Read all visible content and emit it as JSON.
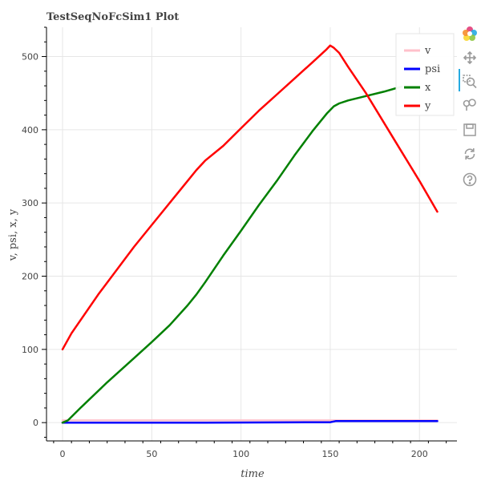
{
  "chart_data": {
    "type": "line",
    "title": "TestSeqNoFcSim1 Plot",
    "xlabel": "time",
    "ylabel": "v, psi, x, y",
    "xlim": [
      -9,
      221
    ],
    "ylim": [
      -25,
      540
    ],
    "x_ticks": [
      0,
      50,
      100,
      150,
      200
    ],
    "y_ticks": [
      0,
      100,
      200,
      300,
      400,
      500
    ],
    "grid": true,
    "legend_position": "top-right",
    "series": [
      {
        "name": "v",
        "color": "#ffc0cb",
        "points": [
          [
            0,
            3
          ],
          [
            210,
            3
          ]
        ]
      },
      {
        "name": "psi",
        "color": "#0000ff",
        "points": [
          [
            0,
            0
          ],
          [
            80,
            0
          ],
          [
            150,
            0.5
          ],
          [
            153,
            2
          ],
          [
            210,
            2
          ]
        ]
      },
      {
        "name": "x",
        "color": "#008000",
        "points": [
          [
            0,
            0
          ],
          [
            3,
            3
          ],
          [
            10,
            20
          ],
          [
            25,
            55
          ],
          [
            40,
            88
          ],
          [
            50,
            110
          ],
          [
            60,
            133
          ],
          [
            70,
            160
          ],
          [
            75,
            175
          ],
          [
            80,
            192
          ],
          [
            90,
            228
          ],
          [
            100,
            262
          ],
          [
            110,
            297
          ],
          [
            120,
            330
          ],
          [
            130,
            365
          ],
          [
            140,
            398
          ],
          [
            148,
            422
          ],
          [
            152,
            432
          ],
          [
            155,
            436
          ],
          [
            160,
            440
          ],
          [
            170,
            446
          ],
          [
            180,
            452
          ],
          [
            190,
            459
          ]
        ]
      },
      {
        "name": "y",
        "color": "#ff0000",
        "points": [
          [
            0,
            100
          ],
          [
            5,
            122
          ],
          [
            20,
            175
          ],
          [
            40,
            240
          ],
          [
            50,
            270
          ],
          [
            60,
            300
          ],
          [
            70,
            330
          ],
          [
            75,
            345
          ],
          [
            80,
            358
          ],
          [
            90,
            378
          ],
          [
            100,
            402
          ],
          [
            110,
            426
          ],
          [
            120,
            448
          ],
          [
            130,
            470
          ],
          [
            140,
            492
          ],
          [
            148,
            510
          ],
          [
            150,
            515
          ],
          [
            152,
            512
          ],
          [
            155,
            505
          ],
          [
            160,
            486
          ],
          [
            170,
            450
          ],
          [
            180,
            410
          ],
          [
            190,
            370
          ],
          [
            200,
            330
          ],
          [
            210,
            288
          ]
        ]
      }
    ]
  },
  "toolbar": {
    "tools": [
      {
        "name": "bokeh-logo-icon",
        "interactable": false
      },
      {
        "name": "pan-icon",
        "interactable": true
      },
      {
        "name": "box-zoom-icon",
        "interactable": true
      },
      {
        "name": "wheel-zoom-icon",
        "interactable": true
      },
      {
        "name": "save-icon",
        "interactable": true
      },
      {
        "name": "reset-icon",
        "interactable": true
      },
      {
        "name": "help-icon",
        "interactable": true
      }
    ]
  }
}
